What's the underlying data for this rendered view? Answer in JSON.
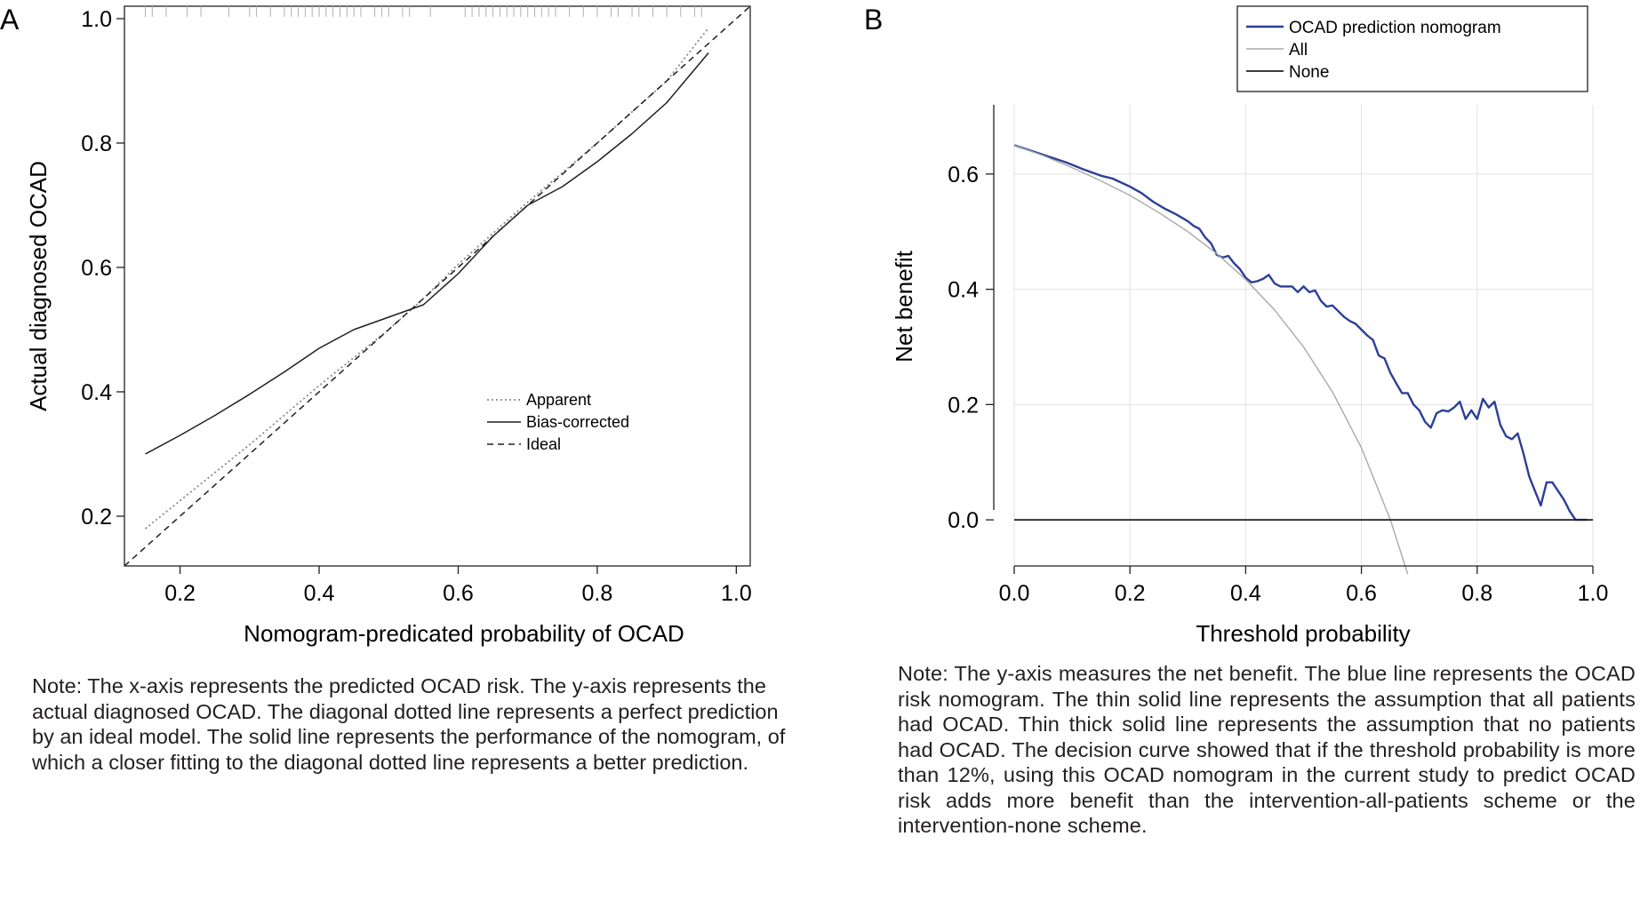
{
  "panels": {
    "a": {
      "letter": "A"
    },
    "b": {
      "letter": "B"
    }
  },
  "notes": {
    "a": "Note: The x-axis represents the predicted OCAD risk. The y-axis represents the actual diagnosed OCAD. The diagonal dotted line represents a perfect prediction by an ideal model. The solid line represents the performance of the nomogram, of which a closer fitting to the diagonal dotted line represents a better prediction.",
    "b": "Note: The y-axis measures the net benefit. The blue line represents the OCAD risk nomogram. The thin solid line represents the assumption that all patients had OCAD. Thin thick solid line represents the assumption that no patients had OCAD. The decision curve showed that if the threshold probability is more than 12%, using this OCAD nomogram in the current study to predict OCAD risk adds more benefit than the intervention-all-patients scheme or the intervention-none scheme."
  },
  "colors": {
    "axis": "#231f20",
    "nomogram": "#2b3f96",
    "all": "#a7a9ac",
    "apparent": "#8a8a8a",
    "rug": "#b0b0b0"
  },
  "chart_data": [
    {
      "type": "line",
      "title": "",
      "xlabel": "Nomogram-predicated probability of OCAD",
      "ylabel": "Actual diagnosed OCAD",
      "xlim": [
        0.12,
        1.02
      ],
      "ylim": [
        0.12,
        1.02
      ],
      "xticks": [
        0.2,
        0.4,
        0.6,
        0.8,
        1.0
      ],
      "yticks": [
        0.2,
        0.4,
        0.6,
        0.8,
        1.0
      ],
      "xtick_labels": [
        "0.2",
        "0.4",
        "0.6",
        "0.8",
        "1.0"
      ],
      "ytick_labels": [
        "0.2",
        "0.4",
        "0.6",
        "0.8",
        "1.0"
      ],
      "grid": false,
      "legend_position": "bottom-right",
      "series": [
        {
          "name": "Apparent",
          "style": "dotted",
          "x": [
            0.15,
            0.2,
            0.3,
            0.4,
            0.5,
            0.55,
            0.6,
            0.7,
            0.8,
            0.9,
            0.96
          ],
          "y": [
            0.18,
            0.225,
            0.315,
            0.41,
            0.5,
            0.55,
            0.605,
            0.705,
            0.8,
            0.9,
            0.985
          ]
        },
        {
          "name": "Bias-corrected",
          "style": "solid",
          "x": [
            0.15,
            0.2,
            0.25,
            0.3,
            0.35,
            0.4,
            0.45,
            0.5,
            0.55,
            0.6,
            0.65,
            0.7,
            0.75,
            0.8,
            0.85,
            0.9,
            0.96
          ],
          "y": [
            0.3,
            0.33,
            0.362,
            0.396,
            0.432,
            0.47,
            0.5,
            0.52,
            0.54,
            0.59,
            0.65,
            0.7,
            0.73,
            0.77,
            0.815,
            0.865,
            0.945
          ]
        },
        {
          "name": "Ideal",
          "style": "dashed",
          "x": [
            0.12,
            1.02
          ],
          "y": [
            0.12,
            1.02
          ]
        }
      ],
      "rug": [
        0.15,
        0.16,
        0.18,
        0.21,
        0.23,
        0.27,
        0.3,
        0.31,
        0.33,
        0.35,
        0.36,
        0.37,
        0.38,
        0.39,
        0.4,
        0.41,
        0.42,
        0.43,
        0.44,
        0.45,
        0.46,
        0.48,
        0.49,
        0.5,
        0.52,
        0.53,
        0.56,
        0.61,
        0.62,
        0.63,
        0.64,
        0.65,
        0.66,
        0.67,
        0.68,
        0.69,
        0.7,
        0.71,
        0.72,
        0.73,
        0.74,
        0.76,
        0.78,
        0.8,
        0.82,
        0.83,
        0.85,
        0.86,
        0.88,
        0.9,
        0.92,
        0.94,
        0.95
      ]
    },
    {
      "type": "line",
      "title": "",
      "xlabel": "Threshold probability",
      "ylabel": "Net benefit",
      "xlim": [
        0.0,
        1.0
      ],
      "ylim": [
        -0.08,
        0.72
      ],
      "xticks": [
        0.0,
        0.2,
        0.4,
        0.6,
        0.8,
        1.0
      ],
      "yticks": [
        0.0,
        0.2,
        0.4,
        0.6
      ],
      "xtick_labels": [
        "0.0",
        "0.2",
        "0.4",
        "0.6",
        "0.8",
        "1.0"
      ],
      "ytick_labels": [
        "0.0",
        "0.2",
        "0.4",
        "0.6"
      ],
      "grid": true,
      "legend_position": "top-right",
      "series": [
        {
          "name": "OCAD prediction nomogram",
          "style": "solid",
          "x": [
            0.0,
            0.03,
            0.06,
            0.09,
            0.12,
            0.15,
            0.17,
            0.2,
            0.22,
            0.24,
            0.26,
            0.28,
            0.3,
            0.31,
            0.32,
            0.33,
            0.34,
            0.35,
            0.36,
            0.37,
            0.38,
            0.39,
            0.4,
            0.41,
            0.42,
            0.43,
            0.44,
            0.45,
            0.46,
            0.47,
            0.48,
            0.49,
            0.5,
            0.51,
            0.52,
            0.53,
            0.54,
            0.55,
            0.56,
            0.57,
            0.58,
            0.59,
            0.6,
            0.61,
            0.62,
            0.63,
            0.64,
            0.65,
            0.66,
            0.67,
            0.68,
            0.69,
            0.7,
            0.71,
            0.72,
            0.73,
            0.74,
            0.75,
            0.76,
            0.77,
            0.78,
            0.79,
            0.8,
            0.81,
            0.82,
            0.83,
            0.84,
            0.85,
            0.86,
            0.87,
            0.88,
            0.89,
            0.9,
            0.91,
            0.92,
            0.93,
            0.94,
            0.95,
            0.96,
            0.97,
            0.98,
            0.99
          ],
          "y": [
            0.65,
            0.64,
            0.63,
            0.62,
            0.608,
            0.597,
            0.592,
            0.578,
            0.567,
            0.552,
            0.54,
            0.53,
            0.518,
            0.51,
            0.505,
            0.49,
            0.48,
            0.46,
            0.455,
            0.458,
            0.445,
            0.435,
            0.42,
            0.412,
            0.414,
            0.418,
            0.425,
            0.41,
            0.405,
            0.405,
            0.405,
            0.395,
            0.405,
            0.395,
            0.398,
            0.38,
            0.37,
            0.372,
            0.362,
            0.352,
            0.345,
            0.34,
            0.33,
            0.32,
            0.312,
            0.285,
            0.28,
            0.255,
            0.237,
            0.22,
            0.22,
            0.2,
            0.19,
            0.17,
            0.16,
            0.185,
            0.19,
            0.188,
            0.195,
            0.205,
            0.175,
            0.19,
            0.175,
            0.21,
            0.195,
            0.205,
            0.165,
            0.145,
            0.14,
            0.15,
            0.115,
            0.075,
            0.05,
            0.025,
            0.065,
            0.065,
            0.05,
            0.035,
            0.015,
            0.0,
            0.0,
            0.0
          ]
        },
        {
          "name": "All",
          "style": "solid",
          "x": [
            0.0,
            0.05,
            0.1,
            0.15,
            0.2,
            0.25,
            0.3,
            0.35,
            0.4,
            0.45,
            0.5,
            0.55,
            0.6,
            0.65,
            0.68
          ],
          "y": [
            0.65,
            0.632,
            0.611,
            0.588,
            0.563,
            0.533,
            0.5,
            0.462,
            0.417,
            0.364,
            0.3,
            0.222,
            0.125,
            0.0,
            -0.094
          ]
        },
        {
          "name": "None",
          "style": "solid",
          "x": [
            0.0,
            1.0
          ],
          "y": [
            0.0,
            0.0
          ]
        }
      ]
    }
  ]
}
